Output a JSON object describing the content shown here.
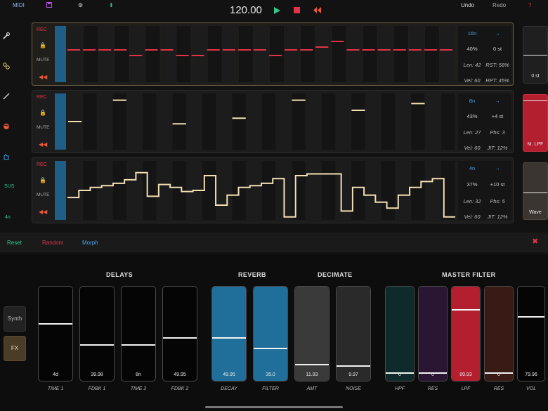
{
  "topbar": {
    "midi": "MIDI",
    "tempo": "120.00",
    "undo": "Undo",
    "redo": "Redo",
    "help": "?",
    "icons": [
      "save-icon",
      "gear-icon",
      "download-icon",
      "play-icon",
      "stop-icon",
      "rewind-icon"
    ]
  },
  "leftcol": {
    "sus": "SUS",
    "division": "4n",
    "icons": [
      "wrench-icon",
      "link-icon",
      "pencil-icon",
      "globe-icon",
      "hand-icon"
    ]
  },
  "tracks": [
    {
      "rec": "REC",
      "mute": "MUTE",
      "params": {
        "division": "16n",
        "direction": "→",
        "prob": "40%",
        "transpose": "0 st",
        "len": "Len: 42",
        "rst": "RST: 58%",
        "vel": "Vel: 60",
        "rpt": "RPT: 45%"
      },
      "steps": [
        0.55,
        0.55,
        0.55,
        0.55,
        0.45,
        0.55,
        0.55,
        0.45,
        0.45,
        0.55,
        0.55,
        0.55,
        0.55,
        0.45,
        0.55,
        0.55,
        0.6,
        0.7,
        0.55,
        0.55,
        0.55,
        0.55,
        0.55,
        0.55,
        0.55
      ]
    },
    {
      "rec": "REC",
      "mute": "MUTE",
      "params": {
        "division": "8n",
        "direction": "→",
        "prob": "43%",
        "transpose": "+4 st",
        "len": "Len: 27",
        "phs": "Phs: 3",
        "vel": "Vel: 60",
        "jit": "JIT: 12%"
      }
    },
    {
      "rec": "REC",
      "mute": "MUTE",
      "params": {
        "division": "4n",
        "direction": "→",
        "prob": "37%",
        "transpose": "+10 st",
        "len": "Len: 32",
        "phs": "Phs: 5",
        "vel": "Vel: 60",
        "jit": "JIT: 12%"
      },
      "steps": [
        0.38,
        0.5,
        0.55,
        0.58,
        0.62,
        0.68,
        0.8,
        0.4,
        0.6,
        0.55,
        0.48,
        0.5,
        0.75,
        0.25,
        0.42,
        0.55,
        0.58,
        0.62,
        0.7,
        0.05,
        0.75,
        0.78,
        0.78,
        0.78,
        0.15,
        0.55,
        0.42,
        0.3,
        0.2,
        0.42,
        0.55,
        0.65,
        0.7,
        0.05
      ]
    }
  ],
  "right": {
    "slot1": "0 st",
    "slot2": "M. LPF",
    "slot3": "Wave"
  },
  "actions": {
    "reset": "Reset",
    "random": "Random",
    "morph": "Morph",
    "close": "✖"
  },
  "panel": {
    "synth": "Synth",
    "fx": "FX",
    "groups": {
      "delays": "DELAYS",
      "reverb": "REVERB",
      "decimate": "DECIMATE",
      "master": "MASTER FILTER"
    },
    "faders": [
      {
        "label": "TIME 1",
        "value": "4d",
        "level": 0.7
      },
      {
        "label": "FDBK 1",
        "value": "39.98",
        "level": 0.4
      },
      {
        "label": "TIME 2",
        "value": "8n",
        "level": 0.4
      },
      {
        "label": "FDBK 2",
        "value": "49.95",
        "level": 0.5
      },
      {
        "label": "DECAY",
        "value": "49.95",
        "level": 0.5
      },
      {
        "label": "FILTER",
        "value": "35.0",
        "level": 0.35
      },
      {
        "label": "AMT",
        "value": "11.93",
        "level": 0.12
      },
      {
        "label": "NOISE",
        "value": "9.97",
        "level": 0.1
      },
      {
        "label": "HPF",
        "value": "0",
        "level": 0.0
      },
      {
        "label": "RES",
        "value": "0",
        "level": 0.0
      },
      {
        "label": "LPF",
        "value": "89.93",
        "level": 0.9
      },
      {
        "label": "RES",
        "value": "0",
        "level": 0.0
      },
      {
        "label": "VOL",
        "value": "79.96",
        "level": 0.8
      }
    ]
  },
  "colors": {
    "red": "#e0334a",
    "blue": "#4aa0e6",
    "green": "#2fc78a",
    "cream": "#f2dfb5",
    "reverb": "#1f6f9a"
  }
}
